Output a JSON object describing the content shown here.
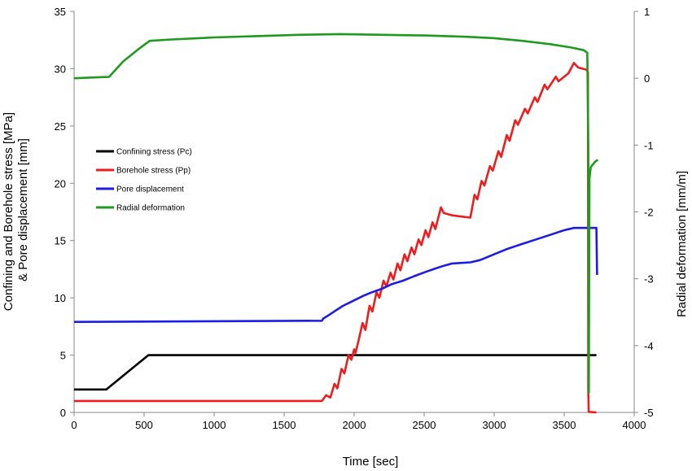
{
  "chart_data": {
    "type": "line",
    "xlabel": "Time [sec]",
    "ylabel_left": [
      "Confining and Borehole stress [MPa]",
      "& Pore displacement [mm]"
    ],
    "ylabel_right": "Radial deformation  [mm/m]",
    "xlim": [
      0,
      4000
    ],
    "ylim_left": [
      0,
      35
    ],
    "ylim_right": [
      -5,
      1
    ],
    "x_ticks": [
      0,
      500,
      1000,
      1500,
      2000,
      2500,
      3000,
      3500,
      4000
    ],
    "y_left_ticks": [
      0,
      5,
      10,
      15,
      20,
      25,
      30,
      35
    ],
    "y_right_ticks": [
      -5,
      -4,
      -3,
      -2,
      -1,
      0,
      1
    ],
    "grid": false,
    "legend_position": "left-center",
    "series": [
      {
        "name": "Confining stress (Pc)",
        "color": "#000000",
        "axis": "left",
        "points": [
          [
            0,
            2.0
          ],
          [
            230,
            2.0
          ],
          [
            530,
            5.0
          ],
          [
            3730,
            5.0
          ]
        ]
      },
      {
        "name": "Borehole stress (Pp)",
        "color": "#ee1c1c",
        "axis": "left",
        "points": [
          [
            0,
            1.0
          ],
          [
            1770,
            1.0
          ],
          [
            1800,
            1.5
          ],
          [
            1830,
            1.3
          ],
          [
            1860,
            2.5
          ],
          [
            1880,
            2.1
          ],
          [
            1910,
            3.8
          ],
          [
            1930,
            3.4
          ],
          [
            1960,
            5.0
          ],
          [
            1980,
            4.6
          ],
          [
            2000,
            5.5
          ],
          [
            2010,
            5.2
          ],
          [
            2030,
            6.2
          ],
          [
            2060,
            7.8
          ],
          [
            2080,
            7.2
          ],
          [
            2110,
            9.3
          ],
          [
            2130,
            8.8
          ],
          [
            2160,
            10.5
          ],
          [
            2180,
            10.0
          ],
          [
            2210,
            11.5
          ],
          [
            2230,
            11.0
          ],
          [
            2260,
            12.2
          ],
          [
            2280,
            11.6
          ],
          [
            2310,
            13.0
          ],
          [
            2330,
            12.4
          ],
          [
            2360,
            13.8
          ],
          [
            2380,
            13.2
          ],
          [
            2410,
            14.4
          ],
          [
            2430,
            13.8
          ],
          [
            2460,
            15.1
          ],
          [
            2480,
            14.6
          ],
          [
            2510,
            15.9
          ],
          [
            2530,
            15.3
          ],
          [
            2560,
            16.6
          ],
          [
            2580,
            16.0
          ],
          [
            2620,
            17.9
          ],
          [
            2640,
            17.4
          ],
          [
            2700,
            17.2
          ],
          [
            2760,
            17.1
          ],
          [
            2830,
            17.0
          ],
          [
            2860,
            19.0
          ],
          [
            2880,
            18.6
          ],
          [
            2910,
            20.2
          ],
          [
            2930,
            19.8
          ],
          [
            2970,
            21.5
          ],
          [
            2990,
            21.1
          ],
          [
            3030,
            22.8
          ],
          [
            3050,
            22.3
          ],
          [
            3090,
            24.2
          ],
          [
            3110,
            23.7
          ],
          [
            3150,
            25.5
          ],
          [
            3170,
            25.1
          ],
          [
            3220,
            26.5
          ],
          [
            3240,
            26.1
          ],
          [
            3290,
            27.5
          ],
          [
            3310,
            27.1
          ],
          [
            3360,
            28.6
          ],
          [
            3380,
            28.2
          ],
          [
            3440,
            29.3
          ],
          [
            3460,
            28.9
          ],
          [
            3530,
            29.6
          ],
          [
            3570,
            30.5
          ],
          [
            3600,
            30.1
          ],
          [
            3660,
            29.9
          ],
          [
            3670,
            29.7
          ],
          [
            3672,
            2.0
          ],
          [
            3675,
            0.05
          ],
          [
            3730,
            0.0
          ]
        ]
      },
      {
        "name": "Pore displacement",
        "color": "#1c1ce6",
        "axis": "left",
        "points": [
          [
            0,
            7.9
          ],
          [
            1770,
            8.0
          ],
          [
            1780,
            8.2
          ],
          [
            1820,
            8.5
          ],
          [
            1870,
            8.9
          ],
          [
            1920,
            9.3
          ],
          [
            1970,
            9.6
          ],
          [
            2020,
            9.9
          ],
          [
            2070,
            10.2
          ],
          [
            2130,
            10.5
          ],
          [
            2200,
            10.8
          ],
          [
            2270,
            11.2
          ],
          [
            2350,
            11.5
          ],
          [
            2430,
            11.9
          ],
          [
            2520,
            12.3
          ],
          [
            2590,
            12.6
          ],
          [
            2640,
            12.8
          ],
          [
            2700,
            13.0
          ],
          [
            2830,
            13.1
          ],
          [
            2900,
            13.3
          ],
          [
            3000,
            13.8
          ],
          [
            3100,
            14.3
          ],
          [
            3200,
            14.7
          ],
          [
            3300,
            15.1
          ],
          [
            3400,
            15.5
          ],
          [
            3500,
            15.9
          ],
          [
            3570,
            16.1
          ],
          [
            3730,
            16.1
          ],
          [
            3735,
            12.0
          ]
        ]
      },
      {
        "name": "Radial deformation",
        "color": "#1f9a1f",
        "axis": "right",
        "points": [
          [
            0,
            0.0
          ],
          [
            250,
            0.02
          ],
          [
            350,
            0.25
          ],
          [
            450,
            0.42
          ],
          [
            540,
            0.56
          ],
          [
            700,
            0.58
          ],
          [
            1000,
            0.61
          ],
          [
            1300,
            0.63
          ],
          [
            1600,
            0.65
          ],
          [
            1900,
            0.66
          ],
          [
            2200,
            0.65
          ],
          [
            2500,
            0.64
          ],
          [
            2800,
            0.62
          ],
          [
            3000,
            0.6
          ],
          [
            3200,
            0.56
          ],
          [
            3400,
            0.51
          ],
          [
            3550,
            0.46
          ],
          [
            3640,
            0.42
          ],
          [
            3665,
            0.38
          ],
          [
            3672,
            -1.0
          ],
          [
            3676,
            -4.7
          ],
          [
            3680,
            -1.5
          ],
          [
            3690,
            -1.33
          ],
          [
            3720,
            -1.25
          ],
          [
            3740,
            -1.22
          ]
        ]
      }
    ]
  }
}
